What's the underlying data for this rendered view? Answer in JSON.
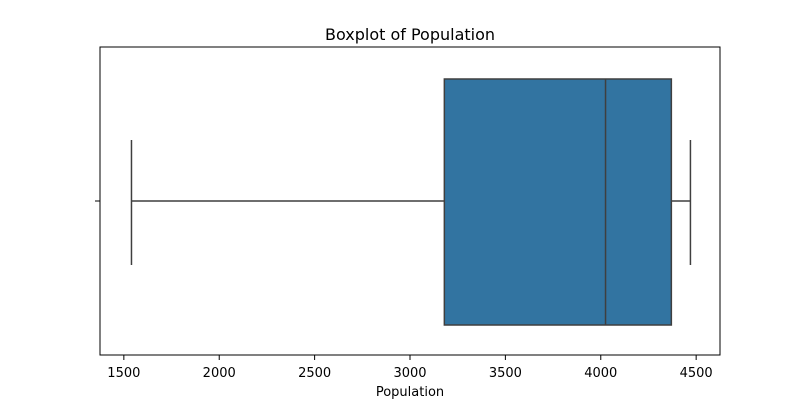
{
  "chart_data": {
    "type": "box",
    "title": "Boxplot of Population",
    "xlabel": "Population",
    "ylabel": "",
    "orientation": "horizontal",
    "xlim": [
      1375,
      4625
    ],
    "xticks": [
      1500,
      2000,
      2500,
      3000,
      3500,
      4000,
      4500
    ],
    "xtick_labels": [
      "1500",
      "2000",
      "2500",
      "3000",
      "3500",
      "4000",
      "4500"
    ],
    "box": {
      "whisker_low": 1540,
      "q1": 3180,
      "median": 4025,
      "q3": 4370,
      "whisker_high": 4470
    },
    "grid": false,
    "legend": "none",
    "colors": {
      "box_fill": "#3274a1",
      "line": "#3f3f3f",
      "axis": "#000000"
    }
  }
}
